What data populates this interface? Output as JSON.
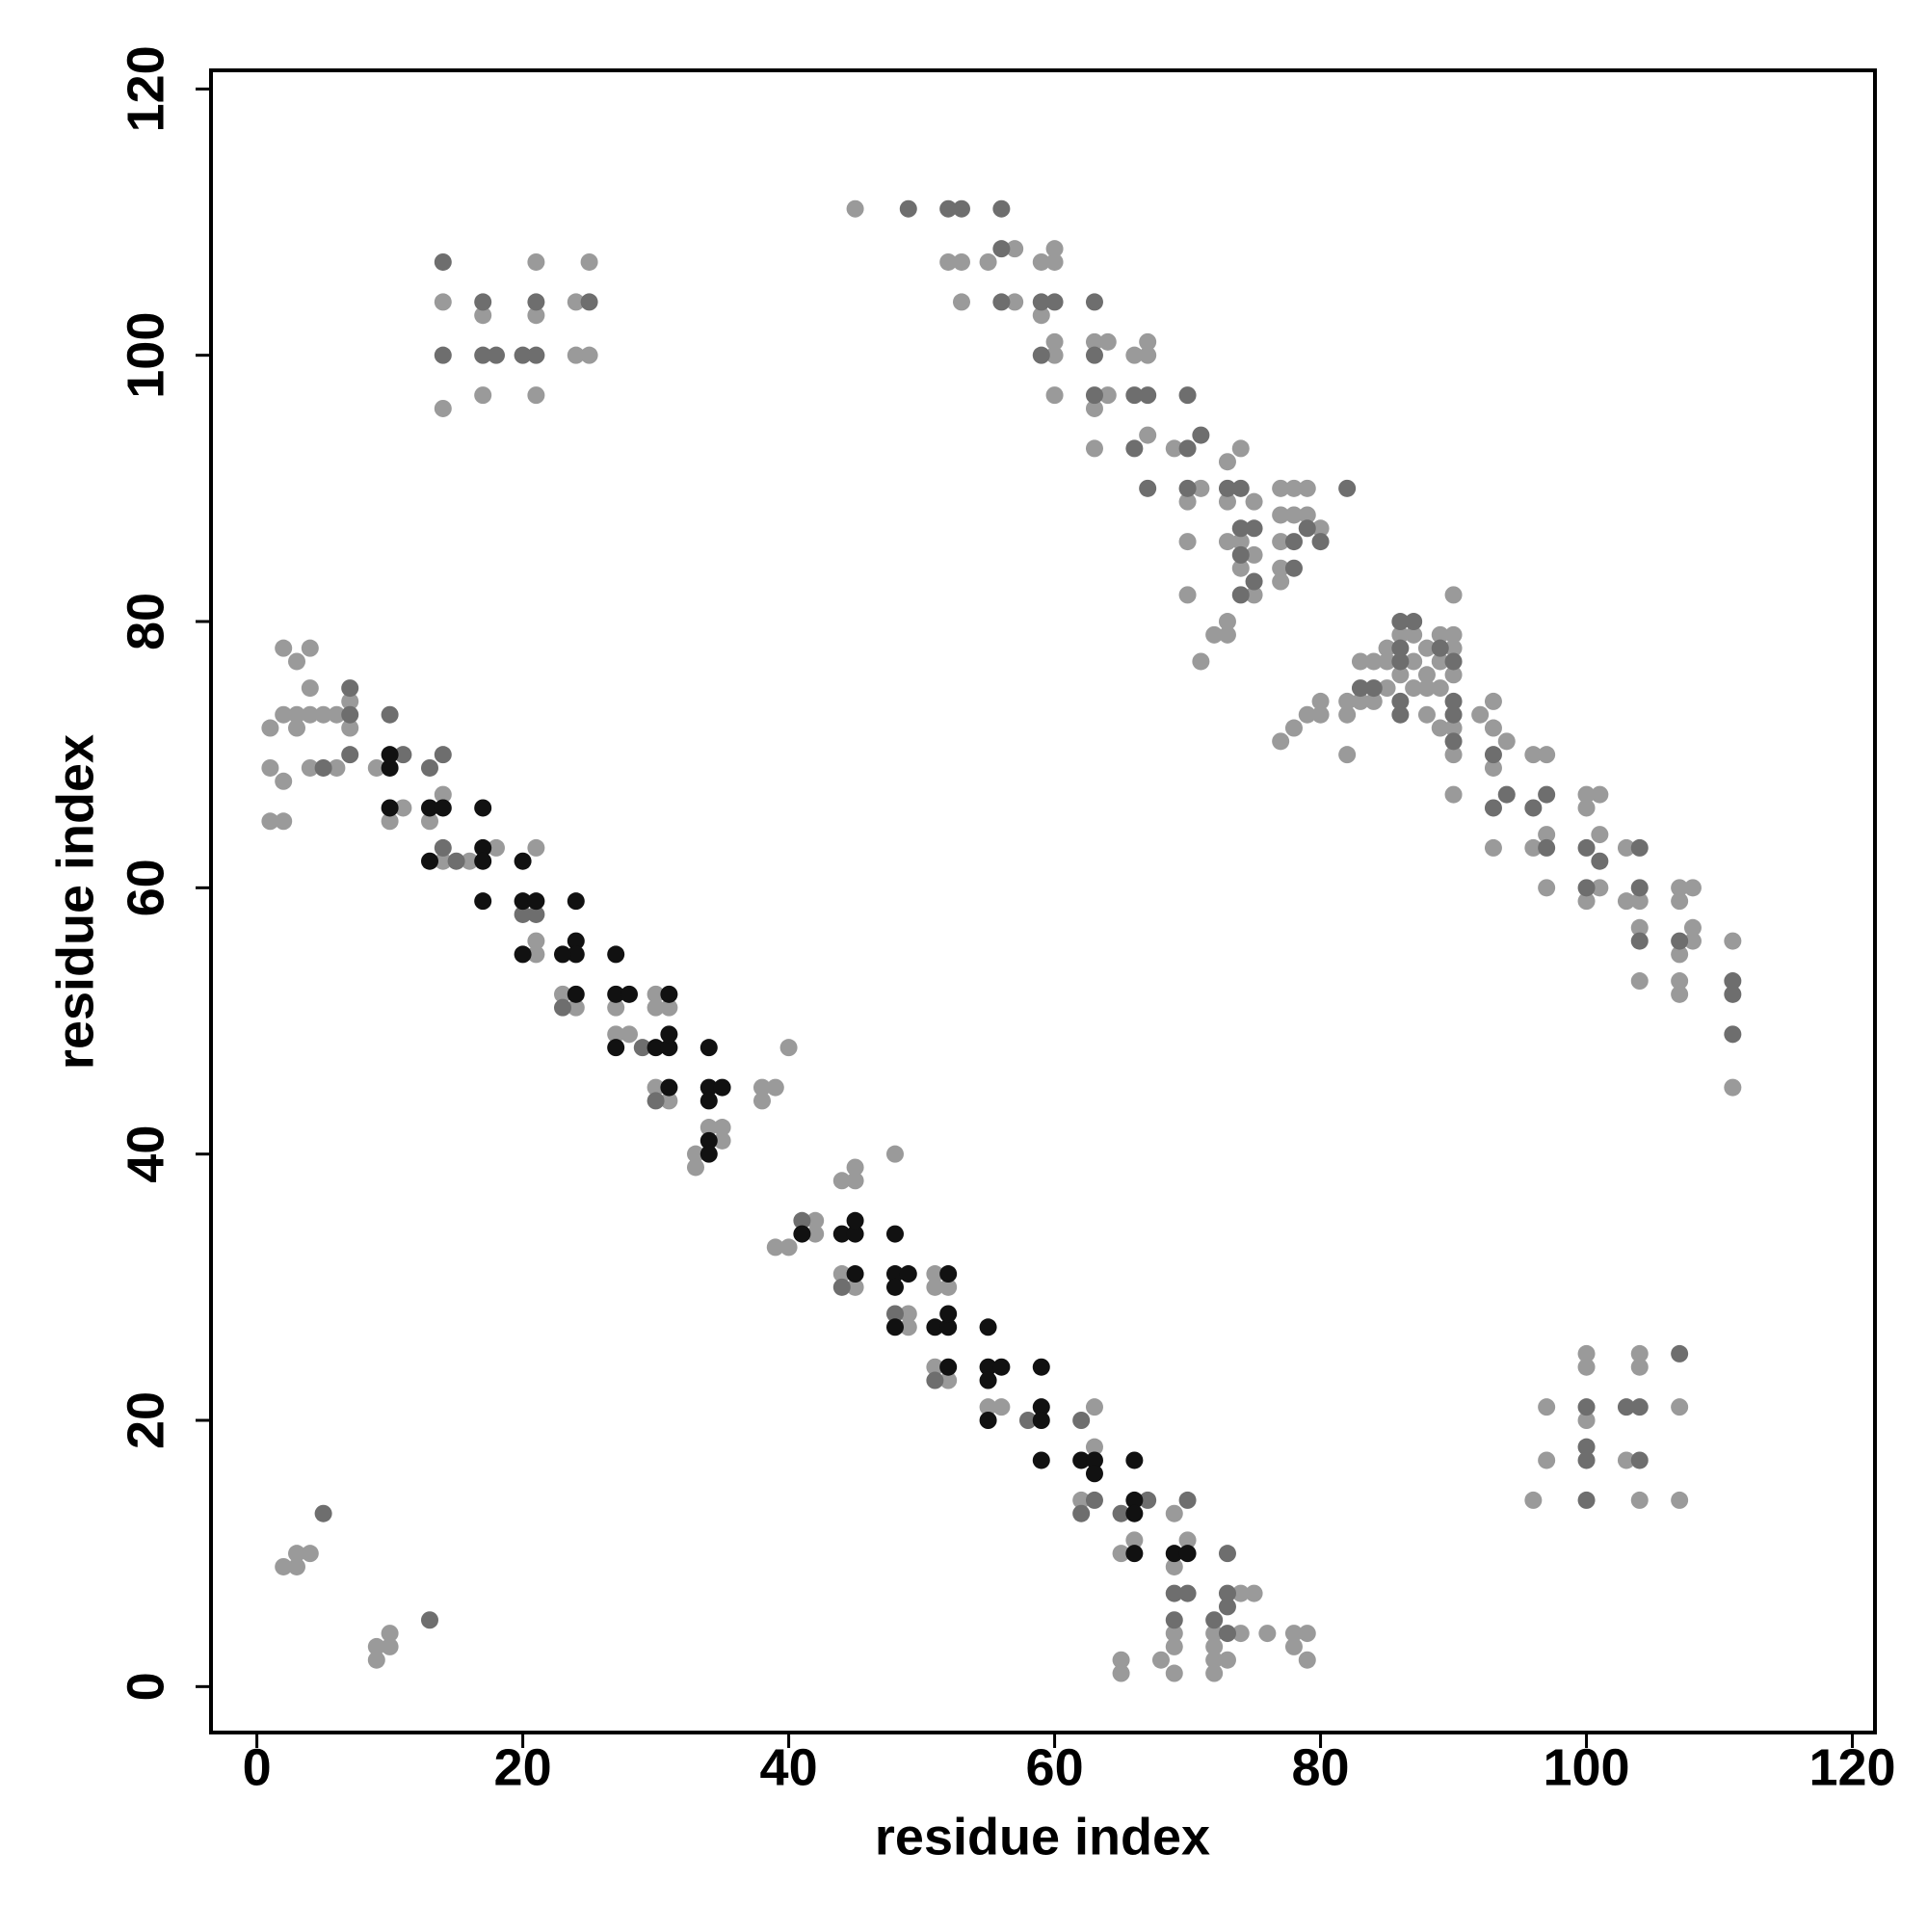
{
  "chart_data": {
    "type": "scatter",
    "xlabel": "residue index",
    "ylabel": "residue index",
    "xlim": [
      -3.45,
      121.7
    ],
    "ylim": [
      -3.45,
      121.4
    ],
    "xticks": [
      0,
      20,
      40,
      60,
      80,
      100,
      120
    ],
    "yticks": [
      0,
      20,
      40,
      60,
      80,
      100,
      120
    ],
    "grid": false,
    "series": [
      {
        "color": "#9a9a9a",
        "x": [
          1,
          1,
          1,
          2,
          2,
          2,
          2,
          3,
          3,
          3,
          4,
          4,
          4,
          4,
          5,
          6,
          6,
          7,
          7,
          2,
          3,
          3,
          4,
          9,
          9,
          10,
          10,
          9,
          10,
          11,
          13,
          14,
          14,
          16,
          18,
          21,
          21,
          21,
          23,
          24,
          27,
          27,
          28,
          30,
          30,
          31,
          30,
          31,
          33,
          33,
          34,
          35,
          35,
          38,
          38,
          39,
          40,
          39,
          40,
          42,
          42,
          44,
          45,
          45,
          44,
          45,
          48,
          49,
          49,
          51,
          51,
          52,
          51,
          52,
          55,
          56,
          63,
          63,
          62,
          65,
          66,
          65,
          65,
          68,
          69,
          69,
          70,
          69,
          69,
          69,
          72,
          72,
          72,
          72,
          73,
          74,
          75,
          74,
          76,
          78,
          78,
          79,
          79,
          14,
          14,
          17,
          17,
          21,
          21,
          21,
          24,
          24,
          25,
          25,
          45,
          52,
          53,
          53,
          55,
          57,
          57,
          59,
          60,
          60,
          59,
          60,
          60,
          60,
          63,
          64,
          63,
          63,
          64,
          66,
          67,
          67,
          67,
          69,
          70,
          70,
          70,
          71,
          71,
          72,
          73,
          73,
          73,
          74,
          73,
          73,
          74,
          75,
          75,
          74,
          75,
          77,
          77,
          77,
          77,
          77,
          78,
          78,
          79,
          79,
          80,
          77,
          78,
          79,
          80,
          80,
          82,
          82,
          82,
          83,
          83,
          84,
          84,
          85,
          85,
          85,
          86,
          86,
          87,
          87,
          87,
          88,
          88,
          88,
          88,
          89,
          89,
          89,
          89,
          90,
          90,
          90,
          90,
          90,
          90,
          90,
          92,
          93,
          93,
          93,
          93,
          94,
          96,
          96,
          97,
          97,
          97,
          100,
          100,
          100,
          101,
          101,
          101,
          103,
          103,
          104,
          104,
          104,
          107,
          107,
          107,
          107,
          107,
          108,
          108,
          108,
          111,
          111,
          96,
          97,
          97,
          100,
          100,
          100,
          103,
          104,
          104,
          104,
          107,
          107
        ],
        "values": [
          72,
          69,
          65,
          65,
          68,
          73,
          78,
          77,
          73,
          72,
          78,
          75,
          73,
          69,
          73,
          69,
          73,
          72,
          74,
          9,
          9,
          10,
          10,
          2,
          3,
          3,
          4,
          69,
          65,
          66,
          65,
          67,
          62,
          62,
          63,
          63,
          56,
          55,
          52,
          51,
          51,
          49,
          49,
          52,
          51,
          51,
          45,
          44,
          40,
          39,
          42,
          42,
          41,
          45,
          44,
          45,
          48,
          33,
          33,
          35,
          34,
          38,
          39,
          38,
          31,
          30,
          40,
          28,
          27,
          31,
          30,
          30,
          24,
          23,
          21,
          21,
          21,
          18,
          14,
          10,
          11,
          2,
          1,
          2,
          13,
          9,
          11,
          1,
          3,
          4,
          1,
          2,
          3,
          4,
          2,
          4,
          7,
          7,
          4,
          3,
          4,
          4,
          2,
          104,
          96,
          103,
          97,
          107,
          103,
          97,
          104,
          100,
          100,
          107,
          111,
          107,
          107,
          104,
          107,
          108,
          104,
          107,
          108,
          107,
          103,
          101,
          100,
          97,
          101,
          101,
          96,
          93,
          97,
          100,
          101,
          94,
          100,
          93,
          86,
          82,
          89,
          90,
          77,
          79,
          80,
          79,
          92,
          93,
          89,
          86,
          86,
          89,
          85,
          84,
          82,
          90,
          88,
          86,
          84,
          83,
          90,
          88,
          90,
          88,
          87,
          71,
          72,
          73,
          74,
          73,
          74,
          73,
          70,
          77,
          74,
          77,
          74,
          78,
          77,
          75,
          76,
          79,
          79,
          77,
          75,
          78,
          76,
          75,
          73,
          79,
          77,
          75,
          72,
          79,
          78,
          76,
          72,
          70,
          67,
          82,
          73,
          74,
          72,
          69,
          63,
          71,
          70,
          63,
          70,
          64,
          60,
          67,
          66,
          59,
          67,
          64,
          60,
          63,
          59,
          59,
          57,
          53,
          60,
          59,
          55,
          53,
          52,
          60,
          57,
          56,
          56,
          45,
          14,
          21,
          17,
          25,
          24,
          20,
          17,
          25,
          24,
          14,
          21,
          14
        ]
      },
      {
        "color": "#6e6e6e",
        "x": [
          7,
          7,
          10,
          11,
          14,
          14,
          13,
          20,
          15,
          21,
          23,
          29,
          30,
          41,
          44,
          48,
          51,
          58,
          62,
          62,
          63,
          65,
          67,
          70,
          70,
          73,
          73,
          69,
          69,
          72,
          73,
          73,
          5,
          13,
          5,
          7,
          14,
          14,
          17,
          17,
          18,
          21,
          20,
          21,
          25,
          49,
          52,
          53,
          56,
          56,
          56,
          59,
          60,
          59,
          63,
          63,
          63,
          66,
          67,
          66,
          67,
          70,
          70,
          70,
          71,
          73,
          74,
          74,
          74,
          75,
          75,
          74,
          78,
          78,
          79,
          80,
          82,
          83,
          84,
          86,
          86,
          86,
          86,
          86,
          87,
          89,
          90,
          90,
          90,
          90,
          93,
          93,
          94,
          96,
          97,
          97,
          100,
          100,
          101,
          104,
          104,
          104,
          107,
          111,
          111,
          111,
          100,
          100,
          100,
          100,
          103,
          104,
          104,
          107
        ],
        "values": [
          73,
          75,
          73,
          70,
          70,
          63,
          69,
          58,
          62,
          58,
          51,
          48,
          44,
          35,
          30,
          28,
          23,
          20,
          20,
          13,
          14,
          13,
          14,
          14,
          7,
          10,
          7,
          7,
          5,
          5,
          4,
          6,
          13,
          5,
          69,
          70,
          107,
          100,
          104,
          100,
          100,
          104,
          100,
          100,
          104,
          111,
          111,
          111,
          111,
          108,
          104,
          104,
          104,
          100,
          104,
          100,
          97,
          97,
          97,
          93,
          90,
          97,
          93,
          90,
          94,
          90,
          90,
          87,
          85,
          87,
          83,
          82,
          86,
          84,
          87,
          86,
          90,
          75,
          75,
          78,
          80,
          77,
          74,
          73,
          80,
          78,
          77,
          74,
          73,
          71,
          70,
          66,
          67,
          66,
          67,
          63,
          63,
          60,
          62,
          63,
          60,
          56,
          56,
          53,
          52,
          49,
          21,
          18,
          17,
          14,
          21,
          21,
          17,
          25
        ]
      },
      {
        "color": "#111111",
        "x": [
          10,
          13,
          14,
          17,
          17,
          17,
          17,
          20,
          21,
          20,
          24,
          24,
          24,
          23,
          24,
          27,
          27,
          28,
          27,
          30,
          31,
          31,
          31,
          31,
          34,
          34,
          34,
          35,
          34,
          34,
          41,
          44,
          45,
          45,
          45,
          48,
          48,
          49,
          48,
          48,
          51,
          52,
          52,
          52,
          52,
          55,
          55,
          56,
          55,
          55,
          59,
          59,
          59,
          59,
          62,
          63,
          63,
          66,
          66,
          66,
          66,
          69,
          70,
          13,
          10,
          10,
          20
        ],
        "values": [
          66,
          66,
          66,
          66,
          63,
          62,
          59,
          59,
          59,
          55,
          59,
          56,
          55,
          55,
          52,
          55,
          52,
          52,
          48,
          48,
          48,
          49,
          52,
          45,
          48,
          45,
          44,
          45,
          41,
          40,
          34,
          34,
          34,
          35,
          31,
          34,
          31,
          31,
          30,
          27,
          27,
          27,
          28,
          31,
          24,
          27,
          24,
          24,
          23,
          20,
          24,
          21,
          20,
          17,
          17,
          17,
          16,
          17,
          14,
          13,
          10,
          10,
          10,
          62,
          69,
          70,
          62
        ]
      }
    ]
  }
}
